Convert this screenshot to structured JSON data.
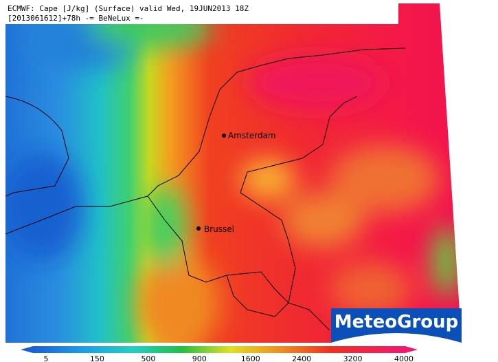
{
  "header": {
    "line1": "ECMWF: Cape [J/kg] (Surface) valid Wed, 19JUN2013 18Z",
    "line2": "[2013061612]+78h -= BeNeLux =-"
  },
  "cities": [
    {
      "label": "Amsterdam"
    },
    {
      "label": "Brussel"
    }
  ],
  "legend": {
    "ticks": [
      5,
      150,
      500,
      900,
      1600,
      2400,
      3200,
      4000
    ]
  },
  "logo": {
    "text": "MeteoGroup"
  }
}
